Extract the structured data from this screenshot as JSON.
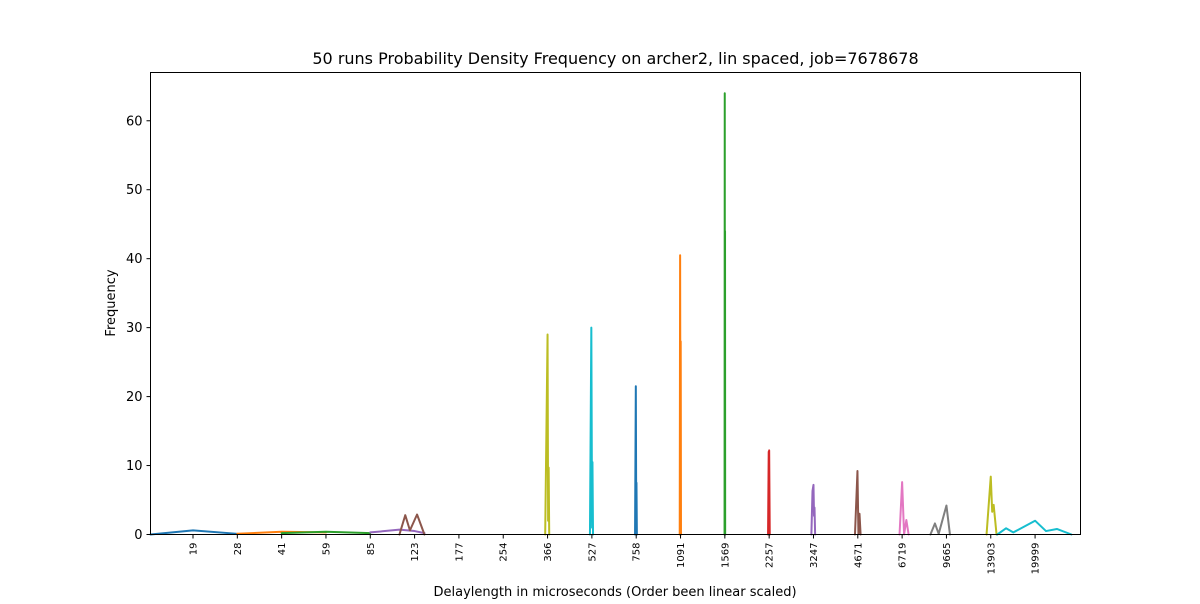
{
  "chart_data": {
    "type": "line",
    "title": "50 runs Probability Density Frequency on archer2, lin spaced, job=7678678",
    "xlabel": "Delaylength in microseconds (Order been linear scaled)",
    "ylabel": "Frequency",
    "ylim": [
      0,
      67
    ],
    "yticks": [
      0,
      10,
      20,
      30,
      40,
      50,
      60
    ],
    "xticks": [
      "19",
      "28",
      "41",
      "59",
      "85",
      "123",
      "177",
      "254",
      "366",
      "527",
      "758",
      "1091",
      "1569",
      "2257",
      "3247",
      "4671",
      "6719",
      "9665",
      "13903",
      "19999"
    ],
    "grid": false,
    "legend": "none",
    "series": [
      {
        "color": "#1f77b4",
        "points": [
          [
            0,
            0.0
          ],
          [
            19,
            0.6
          ],
          [
            28,
            0.1
          ]
        ]
      },
      {
        "color": "#ff7f0e",
        "points": [
          [
            28,
            0.1
          ],
          [
            41,
            0.4
          ],
          [
            59,
            0.3
          ]
        ]
      },
      {
        "color": "#2ca02c",
        "points": [
          [
            41,
            0.2
          ],
          [
            59,
            0.4
          ],
          [
            85,
            0.2
          ]
        ]
      },
      {
        "color": "#9467bd",
        "points": [
          [
            85,
            0.3
          ],
          [
            110,
            0.7
          ],
          [
            123,
            0.5
          ],
          [
            135,
            0.2
          ]
        ]
      },
      {
        "color": "#8c564b",
        "points": [
          [
            110,
            0.0
          ],
          [
            115,
            2.8
          ],
          [
            119,
            0.6
          ],
          [
            126,
            2.9
          ],
          [
            135,
            0.0
          ]
        ]
      },
      {
        "color": "#bcbd22",
        "points": [
          [
            360,
            0.0
          ],
          [
            366,
            29.0
          ],
          [
            368,
            2.0
          ],
          [
            370,
            9.7
          ],
          [
            372,
            0.0
          ]
        ]
      },
      {
        "color": "#17becf",
        "points": [
          [
            520,
            0.0
          ],
          [
            525,
            30.0
          ],
          [
            528,
            1.0
          ],
          [
            530,
            10.5
          ],
          [
            533,
            0.0
          ]
        ]
      },
      {
        "color": "#1f77b4",
        "points": [
          [
            752,
            0.0
          ],
          [
            756,
            21.5
          ],
          [
            758,
            4.0
          ],
          [
            760,
            7.5
          ],
          [
            763,
            0.0
          ]
        ]
      },
      {
        "color": "#ff7f0e",
        "points": [
          [
            1085,
            0.0
          ],
          [
            1088,
            40.5
          ],
          [
            1091,
            2.0
          ],
          [
            1093,
            28.0
          ],
          [
            1096,
            0.0
          ]
        ]
      },
      {
        "color": "#2ca02c",
        "points": [
          [
            1566,
            0.0
          ],
          [
            1568,
            64.0
          ],
          [
            1570,
            1.0
          ],
          [
            1572,
            44.0
          ],
          [
            1574,
            0.0
          ]
        ]
      },
      {
        "color": "#d62728",
        "points": [
          [
            2240,
            0.0
          ],
          [
            2250,
            12.0
          ],
          [
            2253,
            8.0
          ],
          [
            2257,
            12.2
          ],
          [
            2262,
            7.5
          ],
          [
            2270,
            0.0
          ]
        ]
      },
      {
        "color": "#9467bd",
        "points": [
          [
            3200,
            0.0
          ],
          [
            3225,
            6.3
          ],
          [
            3247,
            7.2
          ],
          [
            3265,
            2.7
          ],
          [
            3280,
            3.9
          ],
          [
            3300,
            0.0
          ]
        ]
      },
      {
        "color": "#8c564b",
        "points": [
          [
            4580,
            0.0
          ],
          [
            4660,
            9.2
          ],
          [
            4700,
            0.1
          ],
          [
            4750,
            3.0
          ],
          [
            4800,
            0.0
          ]
        ]
      },
      {
        "color": "#e377c2",
        "points": [
          [
            6600,
            0.0
          ],
          [
            6719,
            7.6
          ],
          [
            6850,
            0.0
          ],
          [
            7000,
            2.1
          ],
          [
            7150,
            0.0
          ]
        ]
      },
      {
        "color": "#7f7f7f",
        "points": [
          [
            8600,
            0.0
          ],
          [
            8900,
            1.6
          ],
          [
            9150,
            0.1
          ],
          [
            9665,
            4.2
          ],
          [
            10000,
            0.0
          ]
        ]
      },
      {
        "color": "#bcbd22",
        "points": [
          [
            13500,
            0.0
          ],
          [
            13903,
            8.4
          ],
          [
            14100,
            3.3
          ],
          [
            14300,
            4.3
          ],
          [
            14700,
            0.0
          ]
        ]
      },
      {
        "color": "#17becf",
        "points": [
          [
            14800,
            0.0
          ],
          [
            16000,
            0.9
          ],
          [
            17000,
            0.3
          ],
          [
            19999,
            2.0
          ],
          [
            21500,
            0.5
          ],
          [
            23000,
            0.8
          ],
          [
            25000,
            0.0
          ]
        ]
      }
    ]
  }
}
